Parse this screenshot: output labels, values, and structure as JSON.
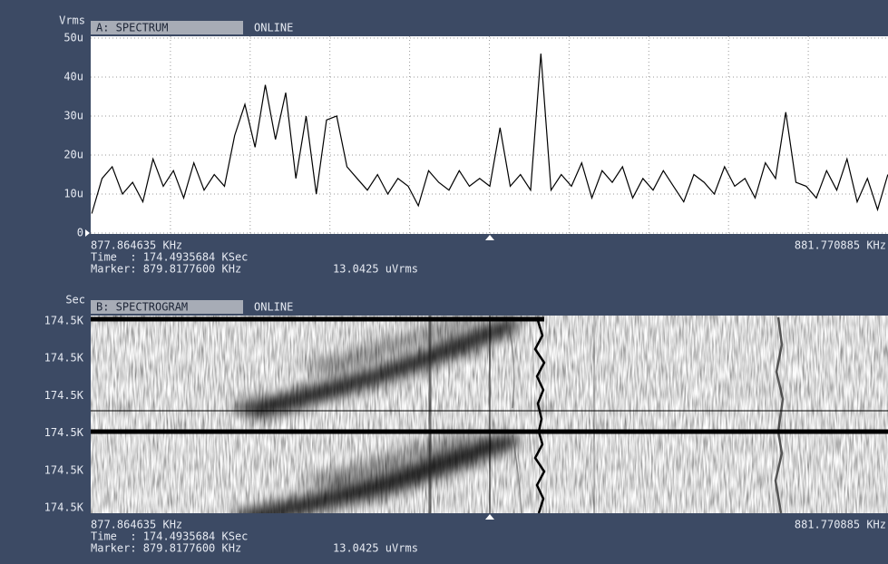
{
  "chart_data": [
    {
      "type": "line",
      "title": "A: SPECTRUM",
      "status": "ONLINE",
      "y_label": "Vrms",
      "color": "#000000",
      "grid": true,
      "xlim": [
        877.864635,
        881.770885
      ],
      "xticks": [
        {
          "value": 877.864635,
          "label": "877.864635 KHz"
        },
        {
          "value": 881.770885,
          "label": "881.770885 KHz"
        }
      ],
      "ylim": [
        0,
        50
      ],
      "yticks": [
        0,
        {
          "value": 10,
          "label": "10u"
        },
        {
          "value": 20,
          "label": "20u"
        },
        {
          "value": 30,
          "label": "30u"
        },
        {
          "value": 40,
          "label": "40u"
        },
        {
          "value": 50,
          "label": "50u"
        }
      ],
      "x": [
        877.87,
        877.92,
        877.97,
        878.02,
        878.07,
        878.12,
        878.17,
        878.22,
        878.27,
        878.32,
        878.37,
        878.42,
        878.47,
        878.52,
        878.57,
        878.62,
        878.67,
        878.72,
        878.77,
        878.82,
        878.87,
        878.92,
        878.97,
        879.02,
        879.07,
        879.12,
        879.17,
        879.22,
        879.27,
        879.32,
        879.37,
        879.42,
        879.47,
        879.52,
        879.57,
        879.62,
        879.67,
        879.72,
        879.77,
        879.82,
        879.87,
        879.92,
        879.97,
        880.02,
        880.07,
        880.12,
        880.17,
        880.22,
        880.27,
        880.32,
        880.37,
        880.42,
        880.47,
        880.52,
        880.57,
        880.62,
        880.67,
        880.72,
        880.77,
        880.82,
        880.87,
        880.92,
        880.97,
        881.02,
        881.07,
        881.12,
        881.17,
        881.22,
        881.27,
        881.32,
        881.37,
        881.42,
        881.47,
        881.52,
        881.57,
        881.62,
        881.67,
        881.72,
        881.77
      ],
      "values": [
        5,
        14,
        17,
        10,
        13,
        8,
        19,
        12,
        16,
        9,
        18,
        11,
        15,
        12,
        25,
        33,
        22,
        38,
        24,
        36,
        14,
        30,
        10,
        29,
        30,
        17,
        14,
        11,
        15,
        10,
        14,
        12,
        7,
        16,
        13,
        11,
        16,
        12,
        14,
        12,
        27,
        12,
        15,
        11,
        46,
        11,
        15,
        12,
        18,
        9,
        16,
        13,
        17,
        9,
        14,
        11,
        16,
        12,
        8,
        15,
        13,
        10,
        17,
        12,
        14,
        9,
        18,
        14,
        31,
        13,
        12,
        9,
        16,
        11,
        19,
        8,
        14,
        6,
        15
      ],
      "time_readout": "Time  : 174.4935684 KSec",
      "marker_readout": "Marker: 879.8177600 KHz",
      "marker_value": "13.0425 uVrms"
    },
    {
      "type": "spectrogram",
      "title": "B: SPECTROGRAM",
      "status": "ONLINE",
      "y_label": "Sec",
      "xticks": [
        {
          "value": 877.864635,
          "label": "877.864635 KHz"
        },
        {
          "value": 881.770885,
          "label": "881.770885 KHz"
        }
      ],
      "ylabels": [
        "174.5K",
        "174.5K",
        "174.5K",
        "174.5K",
        "174.5K",
        "174.5K"
      ],
      "time_readout": "Time  : 174.4935684 KSec",
      "marker_readout": "Marker: 879.8177600 KHz",
      "marker_value": "13.0425 uVrms"
    }
  ]
}
